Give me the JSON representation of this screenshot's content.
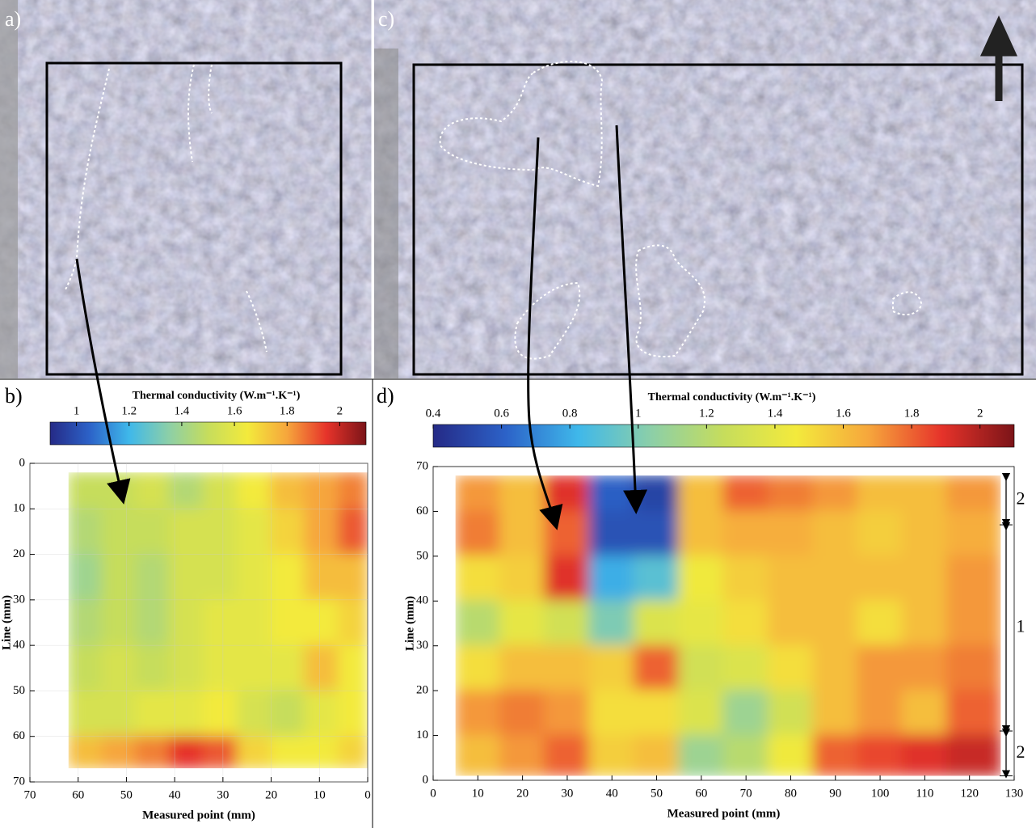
{
  "panels": {
    "a": "a)",
    "c": "c)"
  },
  "chart_data": [
    {
      "type": "heatmap",
      "label": "b)",
      "colorbar_title": "Thermal conductivity (W.m⁻¹.K⁻¹)",
      "clim": [
        0.9,
        2.1
      ],
      "cticks": [
        1,
        1.2,
        1.4,
        1.6,
        1.8,
        2
      ],
      "colormap": [
        "#252a86",
        "#2c62c8",
        "#3fb8ea",
        "#8ccfa8",
        "#c6dd5c",
        "#f3ea3c",
        "#f6a63c",
        "#e6332a",
        "#7b1418"
      ],
      "xlabel": "Measured point (mm)",
      "ylabel": "Line (mm)",
      "xlim": [
        70,
        0
      ],
      "ylim": [
        70,
        0
      ],
      "xticks": [
        70,
        60,
        50,
        40,
        30,
        20,
        10,
        0
      ],
      "yticks": [
        0,
        10,
        20,
        30,
        40,
        50,
        60,
        70
      ],
      "grid": true,
      "xbins": [
        62,
        55,
        48,
        41,
        34,
        27,
        20,
        13,
        6,
        0
      ],
      "ybins": [
        2,
        10,
        20,
        30,
        40,
        50,
        60,
        67
      ],
      "values": [
        [
          1.5,
          1.5,
          1.55,
          1.45,
          1.55,
          1.65,
          1.75,
          1.8,
          1.85
        ],
        [
          1.45,
          1.5,
          1.5,
          1.55,
          1.55,
          1.6,
          1.7,
          1.8,
          1.9
        ],
        [
          1.4,
          1.5,
          1.45,
          1.55,
          1.55,
          1.6,
          1.65,
          1.75,
          1.75
        ],
        [
          1.45,
          1.5,
          1.45,
          1.55,
          1.6,
          1.6,
          1.65,
          1.65,
          1.7
        ],
        [
          1.5,
          1.55,
          1.5,
          1.55,
          1.6,
          1.6,
          1.6,
          1.75,
          1.65
        ],
        [
          1.55,
          1.55,
          1.6,
          1.6,
          1.65,
          1.55,
          1.5,
          1.6,
          1.65
        ],
        [
          1.75,
          1.8,
          1.85,
          1.95,
          1.9,
          1.7,
          1.65,
          1.65,
          1.7
        ]
      ]
    },
    {
      "type": "heatmap",
      "label": "d)",
      "colorbar_title": "Thermal conductivity (W.m⁻¹.K⁻¹)",
      "clim": [
        0.4,
        2.1
      ],
      "cticks": [
        0.4,
        0.6,
        0.8,
        1,
        1.2,
        1.4,
        1.6,
        1.8,
        2
      ],
      "colormap": [
        "#252a86",
        "#2c62c8",
        "#3fb8ea",
        "#8ccfa8",
        "#c6dd5c",
        "#f3ea3c",
        "#f6a63c",
        "#e6332a",
        "#7b1418"
      ],
      "xlabel": "Measured point (mm)",
      "ylabel": "Line (mm)",
      "xlim": [
        0,
        130
      ],
      "ylim": [
        0,
        70
      ],
      "xticks": [
        0,
        10,
        20,
        30,
        40,
        50,
        60,
        70,
        80,
        90,
        100,
        110,
        120,
        130
      ],
      "yticks": [
        0,
        10,
        20,
        30,
        40,
        50,
        60,
        70
      ],
      "grid": false,
      "xbins": [
        5,
        15,
        25,
        35,
        45,
        55,
        65,
        75,
        85,
        95,
        105,
        115,
        127
      ],
      "ybins": [
        68,
        60,
        50,
        40,
        30,
        20,
        10,
        1
      ],
      "values": [
        [
          1.7,
          1.6,
          1.9,
          0.6,
          0.5,
          1.6,
          1.8,
          1.75,
          1.7,
          1.6,
          1.6,
          1.7
        ],
        [
          1.75,
          1.6,
          1.8,
          0.55,
          0.55,
          1.6,
          1.65,
          1.65,
          1.6,
          1.55,
          1.6,
          1.65
        ],
        [
          1.5,
          1.55,
          1.9,
          0.8,
          0.9,
          1.45,
          1.55,
          1.6,
          1.6,
          1.6,
          1.6,
          1.7
        ],
        [
          1.2,
          1.4,
          1.3,
          1.0,
          1.35,
          1.4,
          1.5,
          1.6,
          1.6,
          1.5,
          1.6,
          1.7
        ],
        [
          1.5,
          1.6,
          1.6,
          1.55,
          1.8,
          1.3,
          1.35,
          1.5,
          1.6,
          1.7,
          1.7,
          1.75
        ],
        [
          1.7,
          1.75,
          1.7,
          1.5,
          1.5,
          1.35,
          1.1,
          1.3,
          1.6,
          1.7,
          1.6,
          1.8
        ],
        [
          1.6,
          1.7,
          1.8,
          1.55,
          1.6,
          1.1,
          1.2,
          1.45,
          1.8,
          1.85,
          1.9,
          1.95
        ]
      ],
      "zones": [
        {
          "label": "2",
          "range": [
            57,
            68
          ]
        },
        {
          "label": "1",
          "range": [
            11,
            57
          ]
        },
        {
          "label": "2",
          "range": [
            1,
            11
          ]
        }
      ]
    }
  ]
}
